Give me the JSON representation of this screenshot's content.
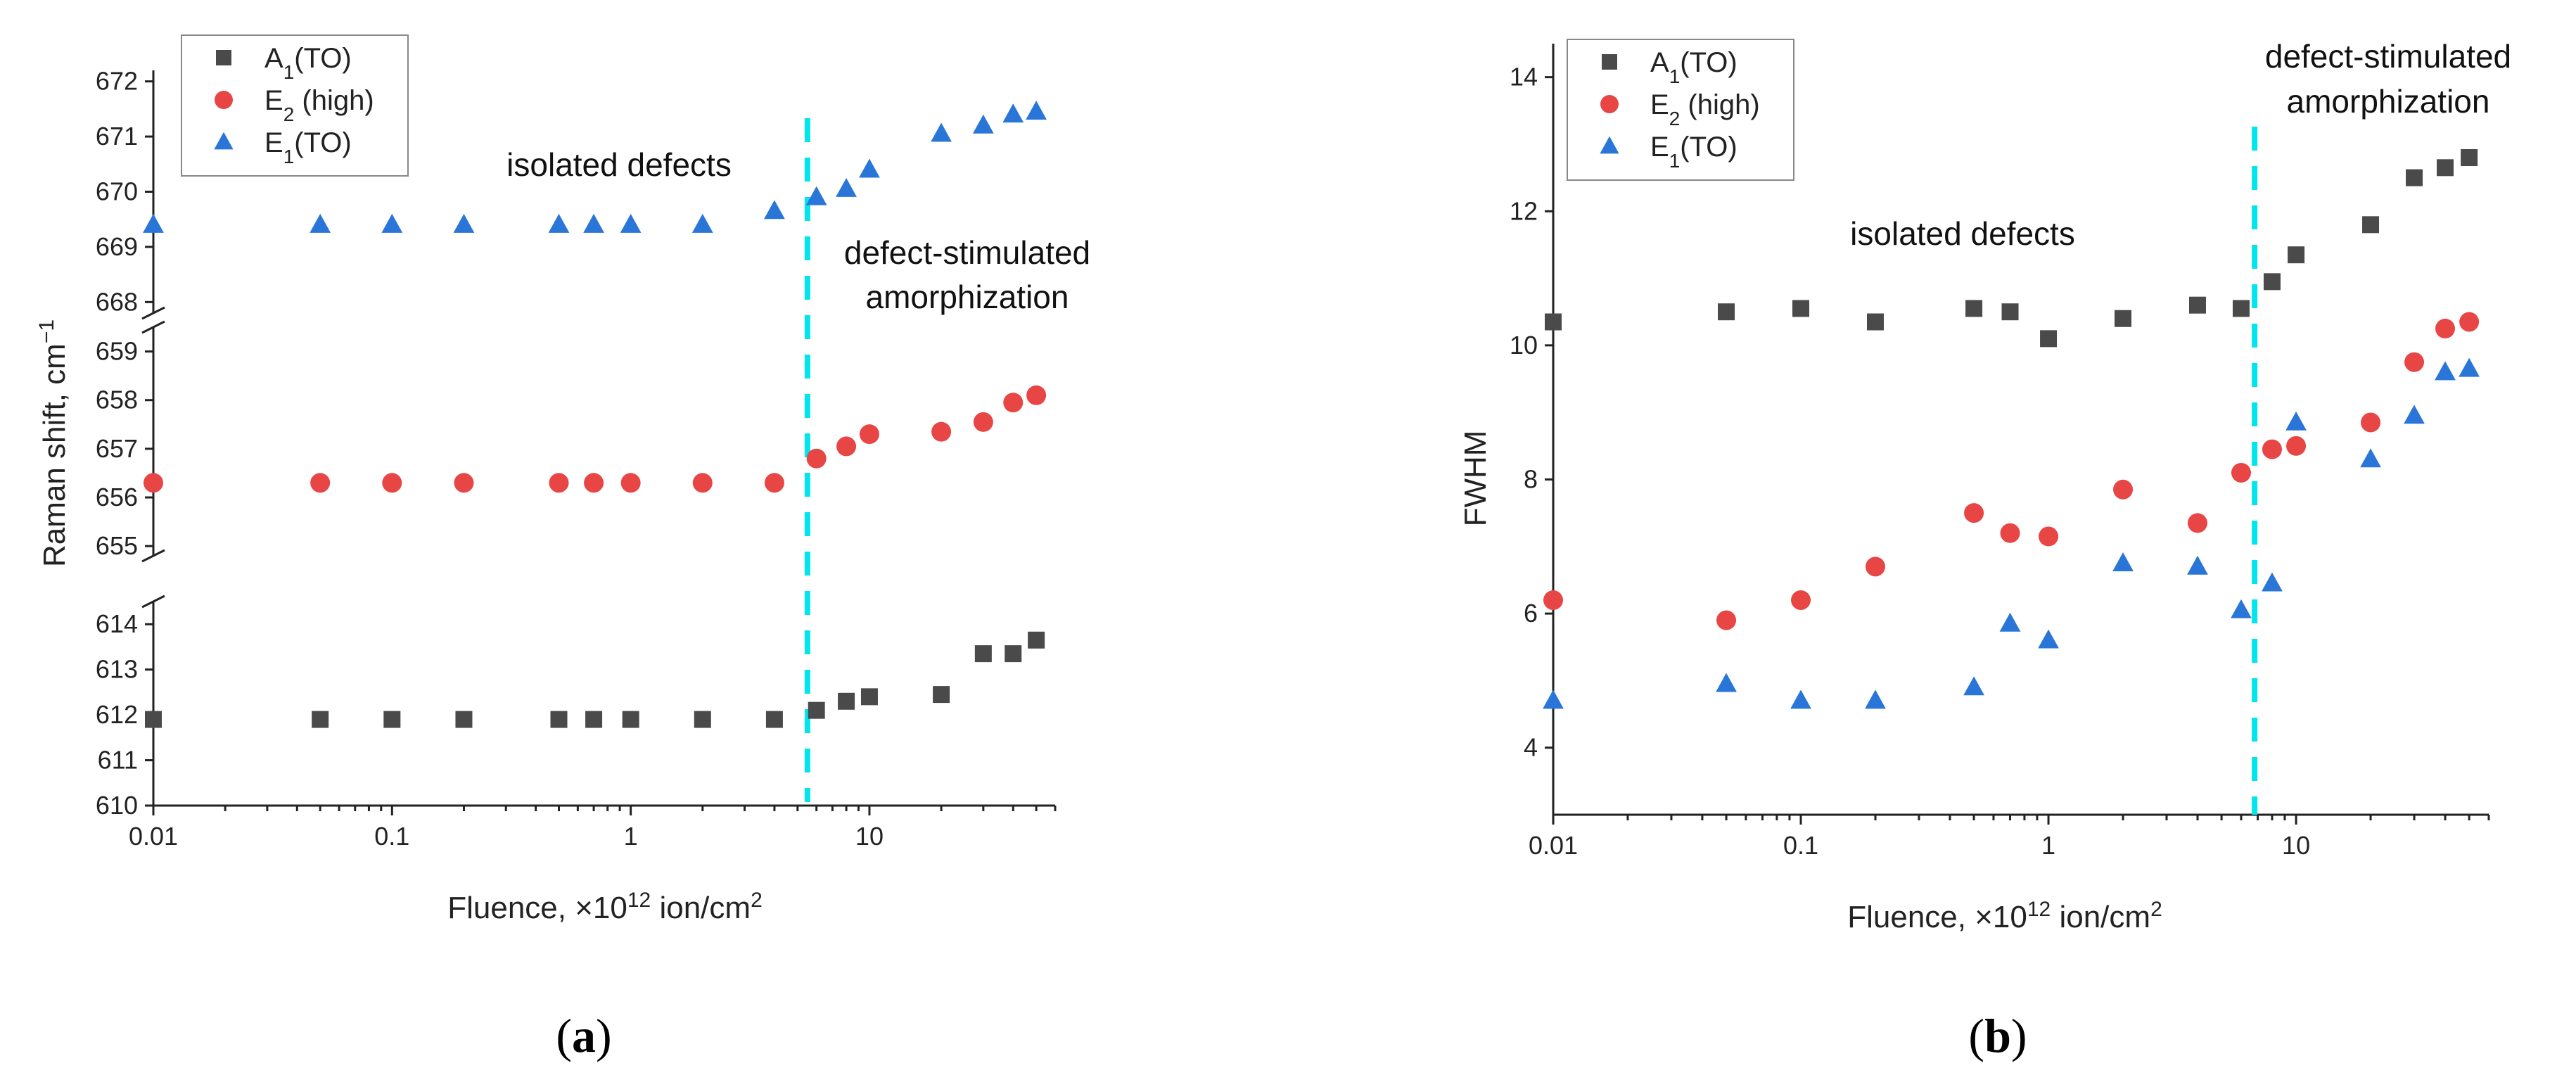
{
  "chart_data": [
    {
      "type": "scatter",
      "panel_label": "a",
      "xscale": "log",
      "xlim": [
        0.01,
        60
      ],
      "xlabel_prefix": "Fluence, ×10",
      "xlabel_exp": "12",
      "xlabel_mid": " ion/cm",
      "xlabel_sq": "2",
      "ylabel_prefix": "Raman shift, cm",
      "ylabel_exp": "−1",
      "x_ticks": [
        "0.01",
        "0.1",
        "1",
        "10"
      ],
      "y_breaks": [
        {
          "range": [
            610,
            614.5
          ],
          "ticks": [
            "610",
            "611",
            "612",
            "613",
            "614"
          ]
        },
        {
          "range": [
            654.8,
            659.5
          ],
          "ticks": [
            "655",
            "656",
            "657",
            "658",
            "659"
          ]
        },
        {
          "range": [
            667.8,
            672.2
          ],
          "ticks": [
            "668",
            "669",
            "670",
            "671",
            "672"
          ]
        }
      ],
      "vline_x": 5.5,
      "vline_color": "#00e5ee",
      "annotations": {
        "isolated": "isolated defects",
        "stim_1": "defect-stimulated",
        "stim_2": "amorphization"
      },
      "legend": [
        {
          "base": "A",
          "sub": "1",
          "rest": "(TO)",
          "marker": "square",
          "color": "#4a4a4a"
        },
        {
          "base": "E",
          "sub": "2",
          "rest": " (high)",
          "marker": "circle",
          "color": "#e84545"
        },
        {
          "base": "E",
          "sub": "1",
          "rest": "(TO)",
          "marker": "triangle",
          "color": "#2a76d8"
        }
      ],
      "x": [
        0.01,
        0.05,
        0.1,
        0.2,
        0.5,
        0.7,
        1,
        2,
        4,
        6,
        8,
        10,
        20,
        30,
        40,
        50
      ],
      "series": [
        {
          "name": "A1(TO)",
          "marker": "square",
          "color": "#4a4a4a",
          "values": [
            611.9,
            611.9,
            611.9,
            611.9,
            611.9,
            611.9,
            611.9,
            611.9,
            611.9,
            612.1,
            612.3,
            612.4,
            612.45,
            613.35,
            613.35,
            613.65
          ]
        },
        {
          "name": "E2 (high)",
          "marker": "circle",
          "color": "#e84545",
          "values": [
            656.3,
            656.3,
            656.3,
            656.3,
            656.3,
            656.3,
            656.3,
            656.3,
            656.3,
            656.8,
            657.05,
            657.3,
            657.35,
            657.55,
            657.95,
            658.1
          ]
        },
        {
          "name": "E1(TO)",
          "marker": "triangle",
          "color": "#2a76d8",
          "values": [
            669.4,
            669.4,
            669.4,
            669.4,
            669.4,
            669.4,
            669.4,
            669.4,
            669.65,
            669.9,
            670.05,
            670.4,
            671.05,
            671.2,
            671.4,
            671.45
          ]
        }
      ]
    },
    {
      "type": "scatter",
      "panel_label": "b",
      "xscale": "log",
      "xlim": [
        0.01,
        60
      ],
      "ylim": [
        3,
        14.5
      ],
      "xlabel_prefix": "Fluence, ×10",
      "xlabel_exp": "12",
      "xlabel_mid": " ion/cm",
      "xlabel_sq": "2",
      "ylabel": "FWHM",
      "x_ticks": [
        "0.01",
        "0.1",
        "1",
        "10"
      ],
      "y_ticks": [
        "4",
        "6",
        "8",
        "10",
        "12",
        "14"
      ],
      "vline_x": 6.8,
      "vline_color": "#00e5ee",
      "annotations": {
        "isolated": "isolated defects",
        "stim_1": "defect-stimulated",
        "stim_2": "amorphization"
      },
      "legend": [
        {
          "base": "A",
          "sub": "1",
          "rest": "(TO)",
          "marker": "square",
          "color": "#4a4a4a"
        },
        {
          "base": "E",
          "sub": "2",
          "rest": " (high)",
          "marker": "circle",
          "color": "#e84545"
        },
        {
          "base": "E",
          "sub": "1",
          "rest": "(TO)",
          "marker": "triangle",
          "color": "#2a76d8"
        }
      ],
      "x": [
        0.01,
        0.05,
        0.1,
        0.2,
        0.5,
        0.7,
        1,
        2,
        4,
        6,
        8,
        10,
        20,
        30,
        40,
        50
      ],
      "series": [
        {
          "name": "A1(TO)",
          "marker": "square",
          "color": "#4a4a4a",
          "values": [
            10.35,
            10.5,
            10.55,
            10.35,
            10.55,
            10.5,
            10.1,
            10.4,
            10.6,
            10.55,
            10.95,
            11.35,
            11.8,
            12.5,
            12.65,
            12.8
          ]
        },
        {
          "name": "E2 (high)",
          "marker": "circle",
          "color": "#e84545",
          "values": [
            6.2,
            5.9,
            6.2,
            6.7,
            7.5,
            7.2,
            7.15,
            7.85,
            7.35,
            8.1,
            8.45,
            8.5,
            8.85,
            9.75,
            10.25,
            10.35
          ]
        },
        {
          "name": "E1(TO)",
          "marker": "triangle",
          "color": "#2a76d8",
          "values": [
            4.7,
            4.95,
            4.7,
            4.7,
            4.9,
            5.85,
            5.6,
            6.75,
            6.7,
            6.05,
            6.45,
            8.85,
            8.3,
            8.95,
            9.6,
            9.65
          ]
        }
      ]
    }
  ]
}
